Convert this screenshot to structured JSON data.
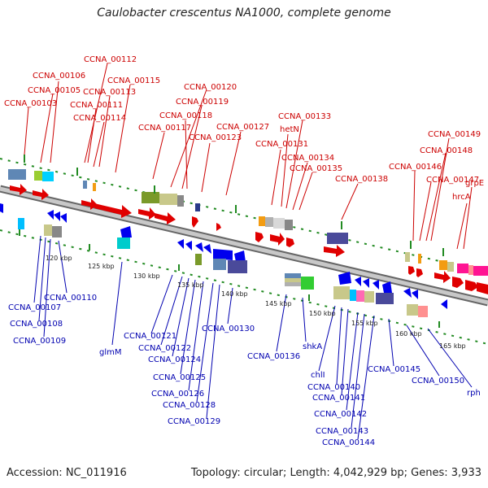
{
  "title": "Caulobacter crescentus NA1000, complete genome",
  "footer": {
    "accession": "Accession: NC_011916",
    "topology": "Topology: circular; Length: 4,042,929 bp; Genes: 3,933"
  },
  "scale_labels": [
    "120 kbp",
    "125 kbp",
    "130 kbp",
    "135 kbp",
    "140 kbp",
    "145 kbp",
    "150 kbp",
    "155 kbp",
    "160 kbp",
    "165 kbp"
  ],
  "top_labels": [
    "CCNA_00112",
    "CCNA_00106",
    "CCNA_00115",
    "CCNA_00105",
    "CCNA_00113",
    "CCNA_00103",
    "CCNA_00111",
    "CCNA_00114",
    "CCNA_00120",
    "CCNA_00119",
    "CCNA_00118",
    "CCNA_00117",
    "CCNA_00127",
    "CCNA_00123",
    "CCNA_00133",
    "hetN",
    "CCNA_00131",
    "CCNA_00134",
    "CCNA_00135",
    "CCNA_00138",
    "CCNA_00149",
    "CCNA_00148",
    "CCNA_00146",
    "CCNA_00147",
    "grpE",
    "hrcA"
  ],
  "bottom_labels": [
    "CCNA_00110",
    "CCNA_00107",
    "CCNA_00108",
    "CCNA_00109",
    "glmM",
    "CCNA_00121",
    "CCNA_00122",
    "CCNA_00124",
    "CCNA_00125",
    "CCNA_00126",
    "CCNA_00128",
    "CCNA_00129",
    "CCNA_00130",
    "CCNA_00136",
    "shkA",
    "chlI",
    "CCNA_00140",
    "CCNA_00141",
    "CCNA_00142",
    "CCNA_00143",
    "CCNA_00144",
    "CCNA_00145",
    "CCNA_00150",
    "rph"
  ],
  "colors": {
    "forward": "#e00000",
    "reverse": "#0000ee",
    "axis": "#888888",
    "tick": "#228b22"
  }
}
